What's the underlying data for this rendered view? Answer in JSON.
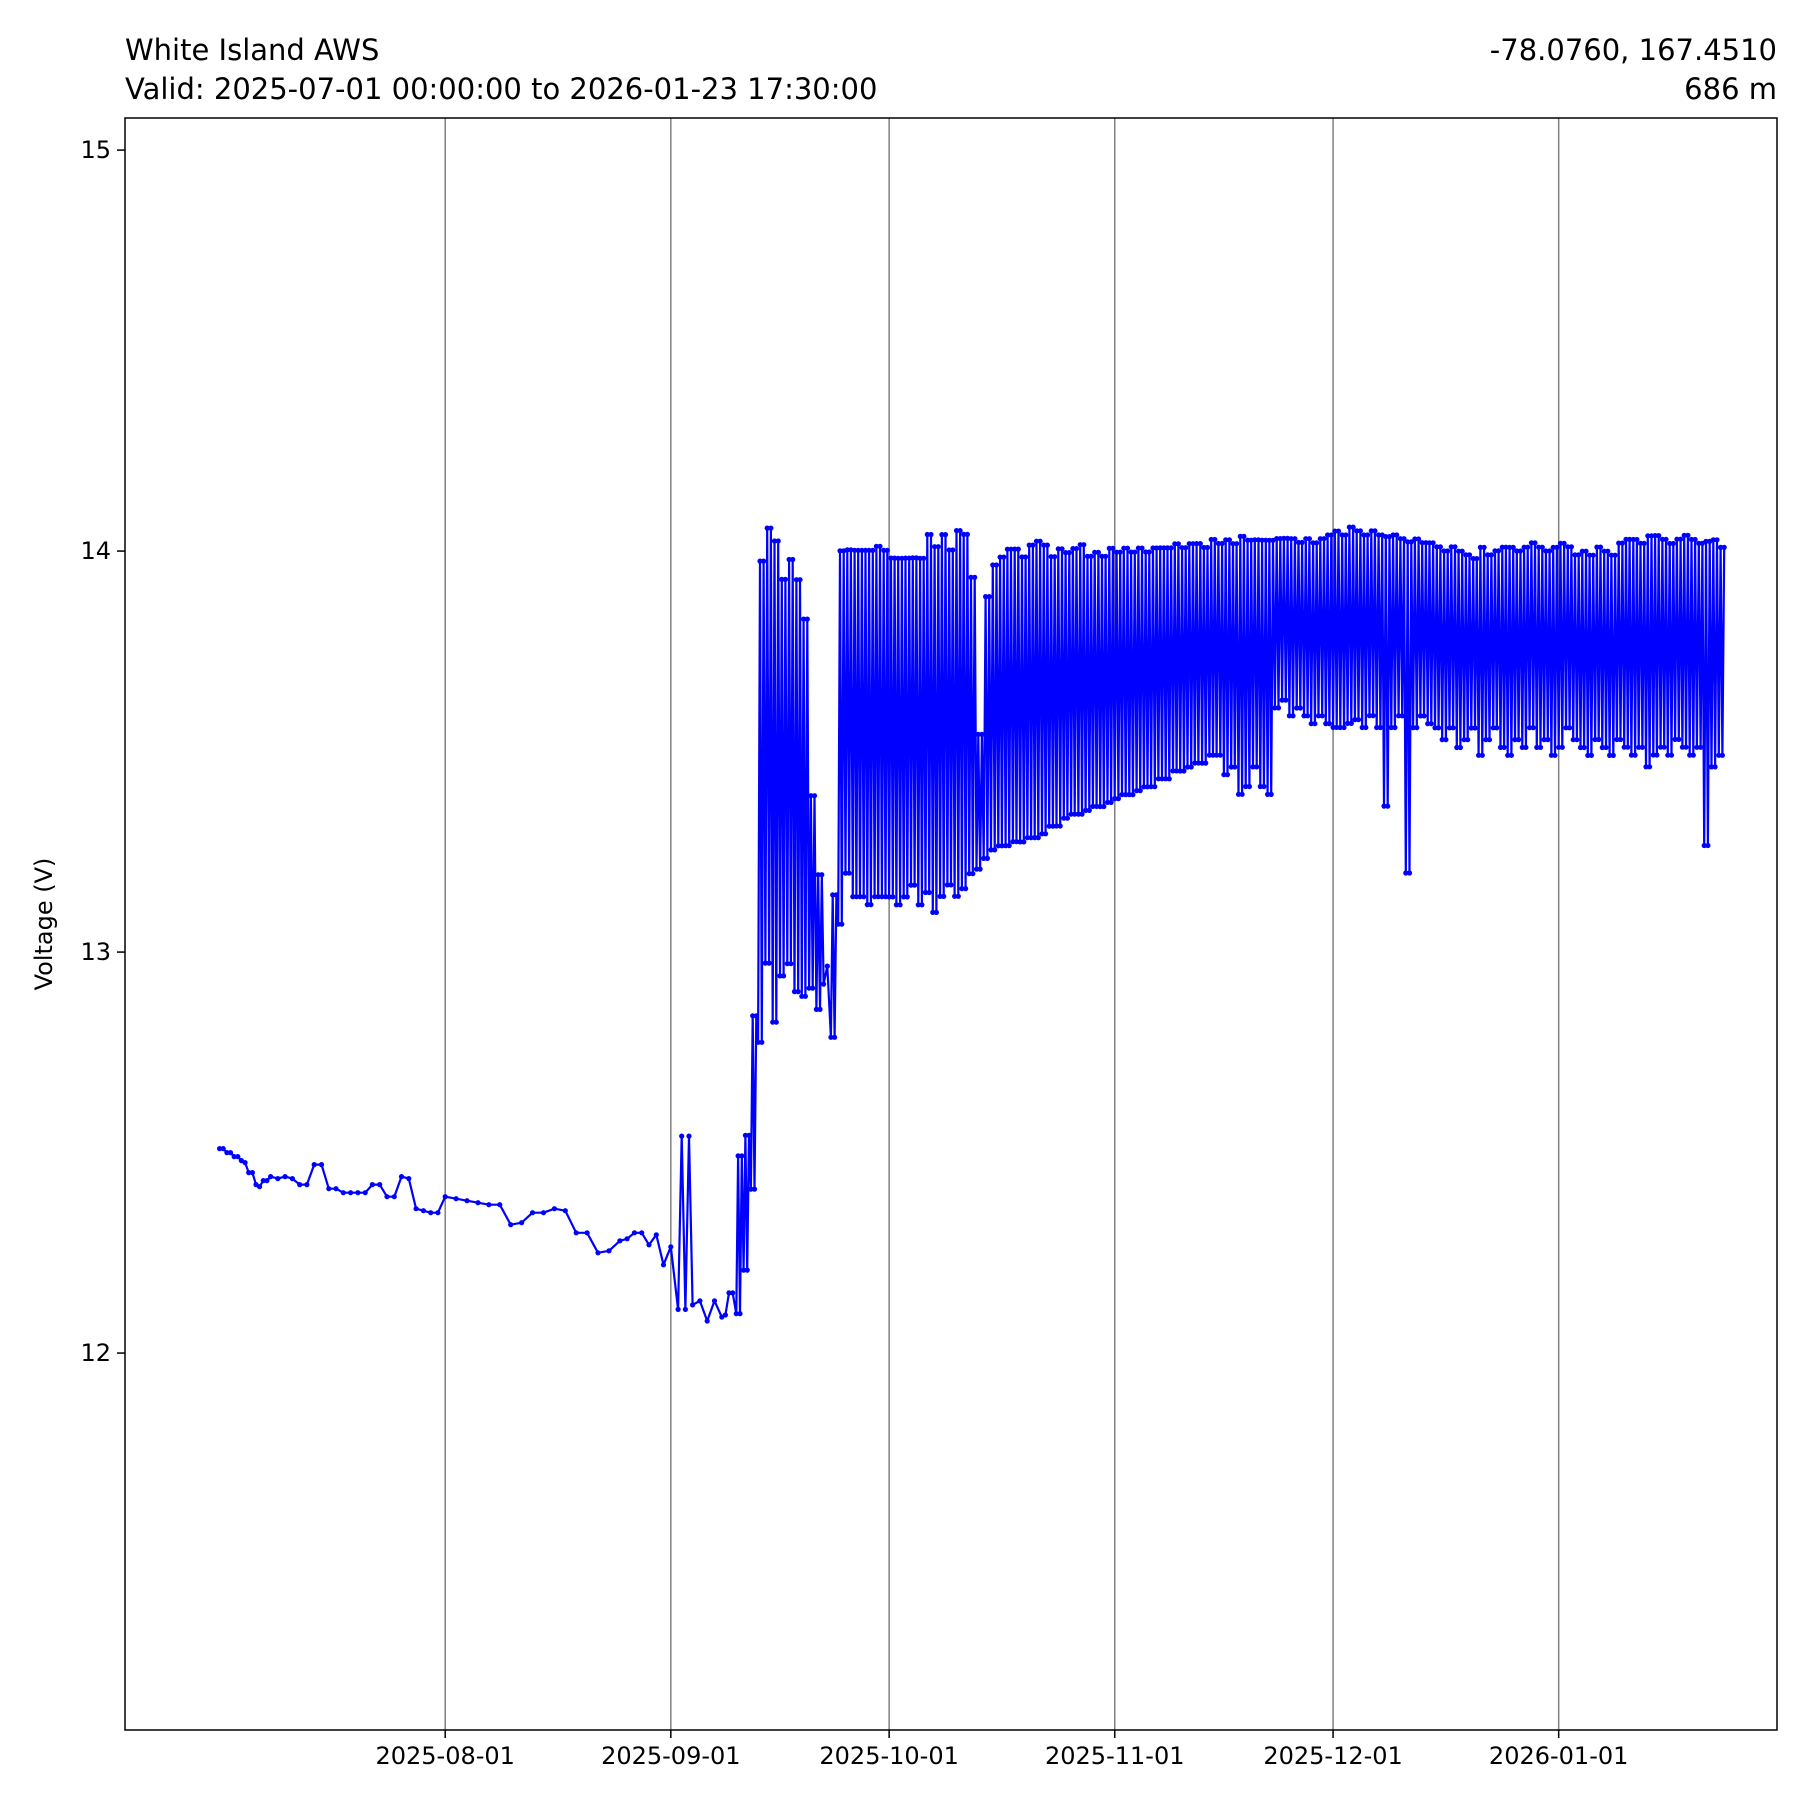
{
  "chart_data": {
    "type": "line",
    "title_left_line1": "White Island AWS",
    "title_left_line2": "Valid: 2025-07-01 00:00:00 to 2026-01-23 17:30:00",
    "title_right_line1": "-78.0760, 167.4510",
    "title_right_line2": "686 m",
    "xlabel": "",
    "ylabel": "Voltage (V)",
    "xlim": [
      "2025-06-18",
      "2026-01-31"
    ],
    "ylim": [
      11.06,
      15.08
    ],
    "xticks": [
      "2025-08-01",
      "2025-09-01",
      "2025-10-01",
      "2025-11-01",
      "2025-12-01",
      "2026-01-01"
    ],
    "yticks": [
      12,
      13,
      14,
      15
    ],
    "grid": "vertical",
    "line_color": "#0000ff",
    "marker": "dot",
    "series": [
      {
        "x": [
          "2025-07-01",
          "2025-07-02",
          "2025-07-03",
          "2025-07-04",
          "2025-07-05",
          "2025-07-06",
          "2025-07-07",
          "2025-07-08",
          "2025-07-10",
          "2025-07-12",
          "2025-07-14",
          "2025-07-16",
          "2025-07-18",
          "2025-07-20",
          "2025-07-22",
          "2025-07-24",
          "2025-07-26",
          "2025-07-28",
          "2025-07-30",
          "2025-08-01",
          "2025-08-04",
          "2025-08-07",
          "2025-08-10",
          "2025-08-13",
          "2025-08-16",
          "2025-08-19",
          "2025-08-22",
          "2025-08-25",
          "2025-08-27",
          "2025-08-29",
          "2025-08-31",
          "2025-09-02",
          "2025-09-04",
          "2025-09-06",
          "2025-09-08",
          "2025-09-09",
          "2025-09-10",
          "2025-09-11",
          "2025-09-12",
          "2025-09-13",
          "2025-09-14",
          "2025-09-15",
          "2025-09-16",
          "2025-09-17",
          "2025-09-18",
          "2025-09-19",
          "2025-09-20",
          "2025-09-21",
          "2025-09-22",
          "2025-09-23",
          "2025-09-24",
          "2025-09-25",
          "2025-09-26",
          "2025-09-27",
          "2025-09-28",
          "2025-09-29",
          "2025-09-30",
          "2025-10-01",
          "2025-10-02",
          "2025-10-03",
          "2025-10-04",
          "2025-10-05",
          "2025-10-06",
          "2025-10-07",
          "2025-10-08",
          "2025-10-09",
          "2025-10-10",
          "2025-10-11",
          "2025-10-12",
          "2025-10-13",
          "2025-10-14",
          "2025-10-15",
          "2025-10-16",
          "2025-10-17",
          "2025-10-18",
          "2025-10-19",
          "2025-10-20",
          "2025-10-21",
          "2025-10-22",
          "2025-10-23",
          "2025-10-24",
          "2025-10-25",
          "2025-10-26",
          "2025-10-27",
          "2025-10-28",
          "2025-10-29",
          "2025-10-30",
          "2025-10-31",
          "2025-11-01",
          "2025-11-02",
          "2025-11-03",
          "2025-11-04",
          "2025-11-05",
          "2025-11-06",
          "2025-11-07",
          "2025-11-08",
          "2025-11-09",
          "2025-11-10",
          "2025-11-11",
          "2025-11-12",
          "2025-11-13",
          "2025-11-14",
          "2025-11-15",
          "2025-11-16",
          "2025-11-17",
          "2025-11-18",
          "2025-11-19",
          "2025-11-20",
          "2025-11-21",
          "2025-11-22",
          "2025-11-23",
          "2025-11-24",
          "2025-11-25",
          "2025-11-26",
          "2025-11-27",
          "2025-11-28",
          "2025-11-29",
          "2025-11-30",
          "2025-12-01",
          "2025-12-02",
          "2025-12-03",
          "2025-12-04",
          "2025-12-05",
          "2025-12-06",
          "2025-12-07",
          "2025-12-08",
          "2025-12-09",
          "2025-12-10",
          "2025-12-11",
          "2025-12-12",
          "2025-12-13",
          "2025-12-14",
          "2025-12-15",
          "2025-12-16",
          "2025-12-17",
          "2025-12-18",
          "2025-12-19",
          "2025-12-20",
          "2025-12-21",
          "2025-12-22",
          "2025-12-23",
          "2025-12-24",
          "2025-12-25",
          "2025-12-26",
          "2025-12-27",
          "2025-12-28",
          "2025-12-29",
          "2025-12-30",
          "2025-12-31",
          "2026-01-01",
          "2026-01-02",
          "2026-01-03",
          "2026-01-04",
          "2026-01-05",
          "2026-01-06",
          "2026-01-07",
          "2026-01-08",
          "2026-01-09",
          "2026-01-10",
          "2026-01-11",
          "2026-01-12",
          "2026-01-13",
          "2026-01-14",
          "2026-01-15",
          "2026-01-16",
          "2026-01-17",
          "2026-01-18",
          "2026-01-19",
          "2026-01-20",
          "2026-01-21",
          "2026-01-22",
          "2026-01-23"
        ],
        "y": [
          12.51,
          12.5,
          12.49,
          12.48,
          12.45,
          12.42,
          12.43,
          12.44,
          12.44,
          12.42,
          12.47,
          12.41,
          12.4,
          12.4,
          12.42,
          12.39,
          12.44,
          12.36,
          12.35,
          12.39,
          12.38,
          12.37,
          12.32,
          12.35,
          12.36,
          12.3,
          12.25,
          12.28,
          12.3,
          12.27,
          12.22,
          12.15,
          12.12,
          12.08,
          12.09,
          12.15,
          12.12,
          12.45,
          12.9,
          13.2,
          13.6,
          13.05,
          12.95,
          13.3,
          13.0,
          12.9,
          13.1,
          12.88,
          12.92,
          12.85,
          13.3,
          13.55,
          13.4,
          13.6,
          13.55,
          13.5,
          13.45,
          13.3,
          13.55,
          13.5,
          13.45,
          13.55,
          13.4,
          13.6,
          13.5,
          13.55,
          13.45,
          13.55,
          13.45,
          13.4,
          13.55,
          13.45,
          13.5,
          13.55,
          13.6,
          13.5,
          13.6,
          13.55,
          13.6,
          13.55,
          13.6,
          13.55,
          13.65,
          13.6,
          13.6,
          13.65,
          13.6,
          13.65,
          13.6,
          13.65,
          13.7,
          13.65,
          13.7,
          13.65,
          13.7,
          13.7,
          13.75,
          13.7,
          13.75,
          13.7,
          13.75,
          13.8,
          13.75,
          13.8,
          13.78,
          13.8,
          13.82,
          13.8,
          13.82,
          13.8,
          13.82,
          13.85,
          13.8,
          13.82,
          13.8,
          13.82,
          13.8,
          13.82,
          13.8,
          13.82,
          13.84,
          13.8,
          13.82,
          13.8,
          13.78,
          13.82,
          13.8,
          13.78,
          13.8,
          13.8,
          13.78,
          13.8,
          13.76,
          13.78,
          13.8,
          13.78,
          13.76,
          13.78,
          13.8,
          13.78,
          13.76,
          13.78,
          13.8,
          13.78,
          13.78,
          13.8,
          13.78,
          13.76,
          13.78,
          13.8,
          13.78,
          13.76,
          13.78,
          13.76,
          13.8,
          13.78,
          13.76,
          13.8,
          13.78,
          13.76,
          13.78,
          13.8,
          13.78,
          13.76,
          13.78,
          13.8,
          13.78,
          13.76,
          13.78,
          13.8,
          13.78,
          13.7
        ],
        "y_min": [
          12.5,
          12.49,
          12.48,
          12.46,
          12.43,
          12.39,
          12.41,
          12.42,
          12.42,
          12.4,
          12.45,
          12.39,
          12.38,
          12.38,
          12.4,
          12.37,
          12.42,
          12.33,
          12.33,
          12.36,
          12.35,
          12.35,
          12.3,
          12.33,
          12.33,
          12.27,
          12.23,
          12.26,
          12.27,
          12.23,
          12.18,
          12.1,
          12.08,
          12.06,
          12.07,
          12.1,
          12.09,
          12.2,
          12.4,
          12.75,
          12.95,
          12.8,
          12.92,
          12.95,
          12.88,
          12.87,
          12.9,
          12.85,
          12.83,
          12.78,
          13.05,
          13.18,
          13.12,
          13.12,
          13.1,
          13.12,
          13.12,
          13.12,
          13.1,
          13.12,
          13.15,
          13.1,
          13.13,
          13.08,
          13.12,
          13.15,
          13.12,
          13.14,
          13.18,
          13.2,
          13.22,
          13.24,
          13.25,
          13.25,
          13.26,
          13.26,
          13.27,
          13.27,
          13.28,
          13.3,
          13.3,
          13.32,
          13.33,
          13.33,
          13.34,
          13.35,
          13.35,
          13.36,
          13.37,
          13.38,
          13.38,
          13.39,
          13.4,
          13.4,
          13.42,
          13.42,
          13.44,
          13.44,
          13.45,
          13.46,
          13.46,
          13.48,
          13.48,
          13.43,
          13.45,
          13.38,
          13.4,
          13.45,
          13.4,
          13.38,
          13.6,
          13.62,
          13.58,
          13.6,
          13.58,
          13.56,
          13.58,
          13.56,
          13.55,
          13.55,
          13.56,
          13.57,
          13.55,
          13.58,
          13.55,
          13.35,
          13.55,
          13.58,
          13.18,
          13.55,
          13.58,
          13.56,
          13.55,
          13.52,
          13.55,
          13.5,
          13.52,
          13.55,
          13.48,
          13.52,
          13.55,
          13.5,
          13.48,
          13.52,
          13.5,
          13.55,
          13.5,
          13.52,
          13.48,
          13.5,
          13.55,
          13.52,
          13.5,
          13.48,
          13.52,
          13.5,
          13.48,
          13.52,
          13.5,
          13.48,
          13.5,
          13.45,
          13.48,
          13.5,
          13.48,
          13.52,
          13.5,
          13.48,
          13.5,
          13.25,
          13.45,
          13.48
        ],
        "y_max": [
          12.52,
          12.51,
          12.5,
          12.49,
          12.47,
          12.44,
          12.45,
          12.45,
          12.45,
          12.44,
          12.49,
          12.43,
          12.42,
          12.42,
          12.44,
          12.41,
          12.45,
          12.38,
          12.37,
          12.41,
          12.4,
          12.39,
          12.35,
          12.37,
          12.38,
          12.33,
          12.28,
          12.31,
          12.33,
          12.36,
          12.35,
          12.55,
          12.18,
          12.2,
          12.12,
          12.2,
          12.5,
          12.55,
          12.85,
          14.0,
          14.08,
          14.05,
          13.95,
          14.0,
          13.95,
          13.85,
          13.4,
          13.2,
          13.1,
          13.15,
          14.02,
          14.02,
          14.02,
          14.02,
          14.02,
          14.03,
          14.02,
          14.0,
          14.0,
          14.0,
          14.0,
          14.0,
          14.06,
          14.03,
          14.06,
          14.02,
          14.07,
          14.06,
          13.95,
          13.55,
          13.9,
          13.98,
          14.0,
          14.02,
          14.02,
          14.0,
          14.03,
          14.04,
          14.03,
          14.0,
          14.02,
          14.01,
          14.02,
          14.03,
          14.0,
          14.01,
          14.0,
          14.02,
          14.01,
          14.02,
          14.01,
          14.02,
          14.01,
          14.02,
          14.02,
          14.02,
          14.03,
          14.02,
          14.03,
          14.03,
          14.02,
          14.04,
          14.03,
          14.04,
          14.03,
          14.05,
          14.04,
          14.04,
          14.04,
          14.04,
          14.04,
          14.04,
          14.04,
          14.03,
          14.04,
          14.03,
          14.04,
          14.05,
          14.06,
          14.05,
          14.07,
          14.06,
          14.05,
          14.06,
          14.05,
          14.05,
          14.05,
          14.04,
          14.04,
          14.04,
          14.03,
          14.03,
          14.02,
          14.01,
          14.02,
          14.01,
          14.0,
          13.99,
          14.02,
          14.0,
          14.01,
          14.02,
          14.02,
          14.01,
          14.02,
          14.03,
          14.02,
          14.01,
          14.02,
          14.03,
          14.02,
          14.0,
          14.01,
          14.0,
          14.02,
          14.01,
          14.0,
          14.03,
          14.04,
          14.04,
          14.03,
          14.05,
          14.05,
          14.04,
          14.03,
          14.04,
          14.05,
          14.04,
          14.03,
          14.04,
          14.04,
          14.02
        ]
      }
    ]
  }
}
